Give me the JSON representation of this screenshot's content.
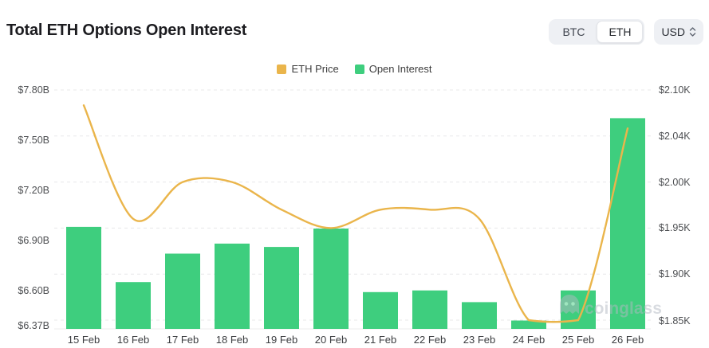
{
  "header": {
    "title": "Total ETH Options Open Interest"
  },
  "controls": {
    "coin_options": [
      "BTC",
      "ETH"
    ],
    "selected_coin": "ETH",
    "currency": "USD"
  },
  "legend": [
    {
      "label": "ETH Price",
      "color": "#EAB54B"
    },
    {
      "label": "Open Interest",
      "color": "#3ECE7E"
    }
  ],
  "watermark": "coinglass",
  "chart_data": {
    "type": "bar+line",
    "title": "Total ETH Options Open Interest",
    "categories": [
      "15 Feb",
      "16 Feb",
      "17 Feb",
      "18 Feb",
      "19 Feb",
      "20 Feb",
      "21 Feb",
      "22 Feb",
      "23 Feb",
      "24 Feb",
      "25 Feb",
      "26 Feb"
    ],
    "series": [
      {
        "name": "Open Interest",
        "type": "bar",
        "axis": "left",
        "unit": "USD billions",
        "color": "#3ECE7E",
        "values": [
          6.98,
          6.65,
          6.82,
          6.88,
          6.86,
          6.97,
          6.59,
          6.6,
          6.53,
          6.42,
          6.6,
          7.63
        ]
      },
      {
        "name": "ETH Price",
        "type": "line",
        "axis": "right",
        "unit": "USD thousands",
        "color": "#EAB54B",
        "values": [
          2.08,
          1.96,
          2.0,
          2.0,
          1.97,
          1.95,
          1.97,
          1.97,
          1.96,
          1.85,
          1.85,
          2.05
        ]
      }
    ],
    "left_axis": {
      "tick_labels": [
        "$7.80B",
        "$7.50B",
        "$7.20B",
        "$6.90B",
        "$6.60B",
        "$6.37B"
      ],
      "tick_values": [
        7.8,
        7.5,
        7.2,
        6.9,
        6.6,
        6.37
      ],
      "min": 6.37
    },
    "right_axis": {
      "tick_labels": [
        "$2.10K",
        "$2.04K",
        "$2.00K",
        "$1.95K",
        "$1.90K",
        "$1.85K"
      ],
      "tick_values": [
        2.1,
        2.04,
        2.0,
        1.95,
        1.9,
        1.85
      ]
    },
    "grid": "dashed-horizontal",
    "legend_position": "top-center"
  }
}
